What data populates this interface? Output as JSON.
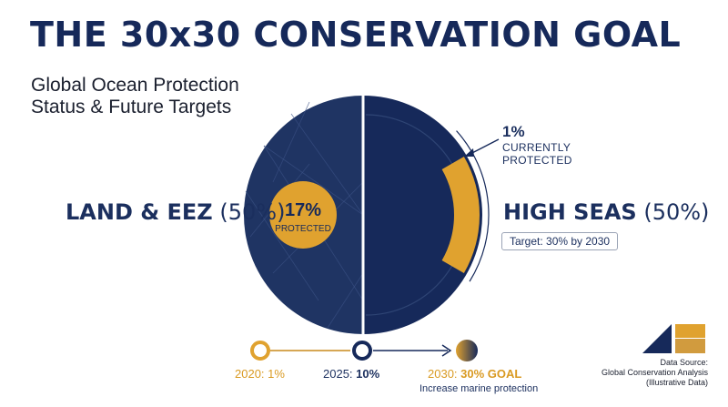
{
  "header": {
    "title": "THE 30x30 CONSERVATION GOAL",
    "subtitle_line1": "Global Ocean Protection",
    "subtitle_line2": "Status & Future Targets"
  },
  "chart_data": {
    "type": "pie",
    "title": "THE 30x30 CONSERVATION GOAL",
    "halves": [
      {
        "name": "LAND & EEZ",
        "share_label": "(50%)",
        "share": 50,
        "protected": 17,
        "protected_label": "17%",
        "protected_caption": "PROTECTED"
      },
      {
        "name": "HIGH SEAS",
        "share_label": "(50%)",
        "share": 50,
        "protected": 1,
        "protected_label": "1%",
        "protected_caption_1": "CURRENTLY",
        "protected_caption_2": "PROTECTED",
        "target_label": "Target: 30% by 2030"
      }
    ],
    "timeline": [
      {
        "year": "2020",
        "label": "2020: 1%",
        "value": 1
      },
      {
        "year": "2025",
        "label_year": "2025:",
        "label_value": "10%",
        "value": 10
      },
      {
        "year": "2030",
        "label_year": "2030:",
        "label_value": "30% GOAL",
        "value": 30,
        "caption": "Increase marine protection"
      }
    ]
  },
  "colors": {
    "navy": "#1f3463",
    "navy_dark": "#16295a",
    "gold": "#e0a22f",
    "gold_dark": "#c98a1c"
  },
  "source": {
    "line1": "Data Source:",
    "line2": "Global Conservation Analysis",
    "line3": "(Illustrative Data)"
  }
}
